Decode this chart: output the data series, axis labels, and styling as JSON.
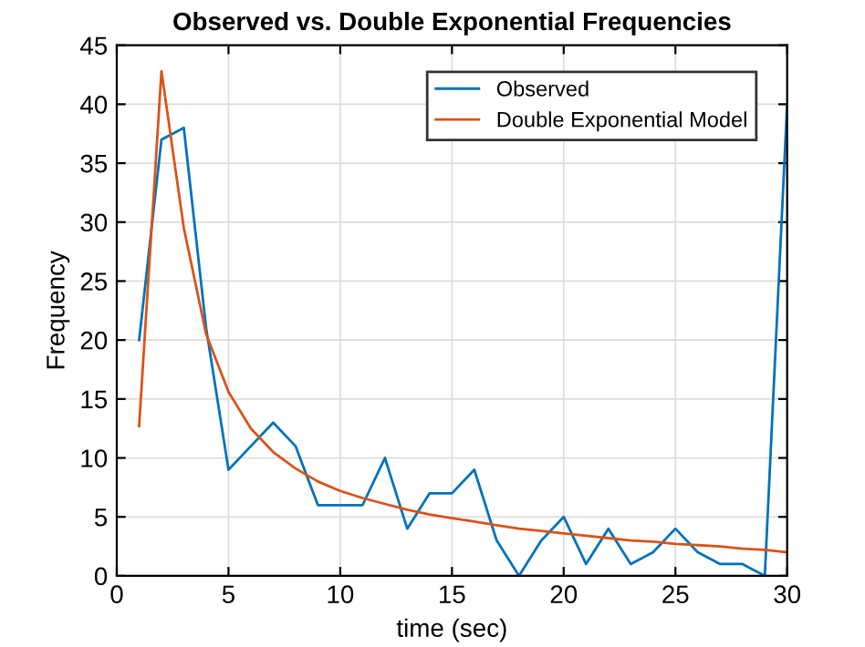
{
  "chart_data": {
    "type": "line",
    "title": "Observed vs. Double Exponential Frequencies",
    "xlabel": "time (sec)",
    "ylabel": "Frequency",
    "x": [
      1,
      2,
      3,
      4,
      5,
      6,
      7,
      8,
      9,
      10,
      11,
      12,
      13,
      14,
      15,
      16,
      17,
      18,
      19,
      20,
      21,
      22,
      23,
      24,
      25,
      26,
      27,
      28,
      29,
      30
    ],
    "series": [
      {
        "name": "Observed",
        "color": "#0072bd",
        "values": [
          20,
          37,
          38,
          21,
          9,
          11,
          13,
          11,
          6,
          6,
          6,
          10,
          4,
          7,
          7,
          9,
          3,
          0,
          3,
          5,
          1,
          4,
          1,
          2,
          4,
          2,
          1,
          1,
          0,
          40
        ]
      },
      {
        "name": "Double Exponential Model",
        "color": "#d95319",
        "values": [
          12.7,
          42.8,
          29.5,
          20.5,
          15.6,
          12.5,
          10.5,
          9.1,
          8.0,
          7.2,
          6.6,
          6.1,
          5.6,
          5.2,
          4.9,
          4.6,
          4.3,
          4.0,
          3.8,
          3.6,
          3.4,
          3.2,
          3.0,
          2.9,
          2.7,
          2.6,
          2.5,
          2.3,
          2.2,
          2.0
        ]
      }
    ],
    "xlim": [
      0,
      30
    ],
    "ylim": [
      0,
      45
    ],
    "xticks": [
      0,
      5,
      10,
      15,
      20,
      25,
      30
    ],
    "yticks": [
      0,
      5,
      10,
      15,
      20,
      25,
      30,
      35,
      40,
      45
    ],
    "grid": true,
    "legend": "top right",
    "marker": "none",
    "line_style": "solid"
  }
}
